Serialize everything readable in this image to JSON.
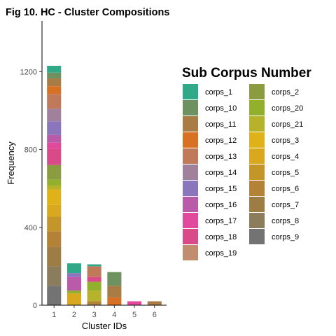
{
  "chart_data": {
    "type": "bar",
    "stacked": true,
    "title": "Fig 10. HC - Cluster Compositions",
    "xlabel": "Cluster IDs",
    "ylabel": "Frequency",
    "categories": [
      "1",
      "2",
      "3",
      "4",
      "5",
      "6"
    ],
    "ylim": [
      0,
      1460
    ],
    "yticks": [
      0,
      400,
      800,
      1200
    ],
    "grid": false,
    "legend_title": "Sub Corpus Number",
    "legend_position": "right",
    "series": [
      {
        "name": "corps_9",
        "color": "#737373",
        "values": [
          100,
          0,
          0,
          0,
          0,
          0
        ]
      },
      {
        "name": "corps_8",
        "color": "#8b7c5b",
        "values": [
          100,
          0,
          0,
          0,
          0,
          0
        ]
      },
      {
        "name": "corps_7",
        "color": "#9e7d45",
        "values": [
          100,
          0,
          5,
          0,
          0,
          0
        ]
      },
      {
        "name": "corps_6",
        "color": "#b38236",
        "values": [
          80,
          0,
          15,
          0,
          0,
          0
        ]
      },
      {
        "name": "corps_5",
        "color": "#c4962a",
        "values": [
          75,
          0,
          0,
          0,
          0,
          0
        ]
      },
      {
        "name": "corps_4",
        "color": "#d9a81f",
        "values": [
          60,
          60,
          0,
          0,
          0,
          0
        ]
      },
      {
        "name": "corps_3",
        "color": "#e0b21a",
        "values": [
          80,
          0,
          0,
          0,
          0,
          0
        ]
      },
      {
        "name": "corps_21",
        "color": "#b6b22b",
        "values": [
          20,
          0,
          55,
          0,
          0,
          0
        ]
      },
      {
        "name": "corps_20",
        "color": "#93b02d",
        "values": [
          30,
          15,
          45,
          0,
          0,
          0
        ]
      },
      {
        "name": "corps_2",
        "color": "#8b9c40",
        "values": [
          75,
          0,
          0,
          0,
          0,
          0
        ]
      },
      {
        "name": "corps_19",
        "color": "#c08d6e",
        "values": [
          0,
          0,
          0,
          0,
          0,
          0
        ]
      },
      {
        "name": "corps_18",
        "color": "#d94b88",
        "values": [
          85,
          0,
          25,
          0,
          0,
          0
        ]
      },
      {
        "name": "corps_17",
        "color": "#e0499c",
        "values": [
          30,
          0,
          0,
          0,
          20,
          0
        ]
      },
      {
        "name": "corps_16",
        "color": "#b95ba8",
        "values": [
          40,
          70,
          0,
          0,
          0,
          0
        ]
      },
      {
        "name": "corps_15",
        "color": "#8b75bd",
        "values": [
          70,
          20,
          0,
          0,
          0,
          0
        ]
      },
      {
        "name": "corps_14",
        "color": "#a0809a",
        "values": [
          65,
          0,
          0,
          0,
          0,
          0
        ]
      },
      {
        "name": "corps_13",
        "color": "#c07a5a",
        "values": [
          75,
          0,
          55,
          0,
          0,
          0
        ]
      },
      {
        "name": "corps_12",
        "color": "#d97125",
        "values": [
          40,
          0,
          0,
          40,
          0,
          0
        ]
      },
      {
        "name": "corps_11",
        "color": "#a97c45",
        "values": [
          40,
          0,
          0,
          60,
          0,
          20
        ]
      },
      {
        "name": "corps_10",
        "color": "#6e9160",
        "values": [
          30,
          0,
          0,
          70,
          0,
          0
        ]
      },
      {
        "name": "corps_1",
        "color": "#2fa987",
        "values": [
          35,
          50,
          10,
          0,
          0,
          0
        ]
      }
    ],
    "legend_columns": [
      [
        "corps_1",
        "corps_10",
        "corps_11",
        "corps_12",
        "corps_13",
        "corps_14",
        "corps_15",
        "corps_16",
        "corps_17",
        "corps_18",
        "corps_19"
      ],
      [
        "corps_2",
        "corps_20",
        "corps_21",
        "corps_3",
        "corps_4",
        "corps_5",
        "corps_6",
        "corps_7",
        "corps_8",
        "corps_9"
      ]
    ]
  }
}
